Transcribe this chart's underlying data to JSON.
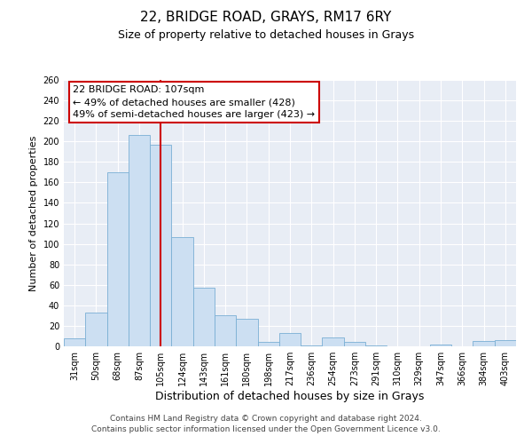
{
  "title": "22, BRIDGE ROAD, GRAYS, RM17 6RY",
  "subtitle": "Size of property relative to detached houses in Grays",
  "xlabel": "Distribution of detached houses by size in Grays",
  "ylabel": "Number of detached properties",
  "bar_labels": [
    "31sqm",
    "50sqm",
    "68sqm",
    "87sqm",
    "105sqm",
    "124sqm",
    "143sqm",
    "161sqm",
    "180sqm",
    "198sqm",
    "217sqm",
    "236sqm",
    "254sqm",
    "273sqm",
    "291sqm",
    "310sqm",
    "329sqm",
    "347sqm",
    "366sqm",
    "384sqm",
    "403sqm"
  ],
  "bar_values": [
    8,
    33,
    170,
    206,
    197,
    107,
    57,
    30,
    27,
    4,
    13,
    1,
    9,
    4,
    1,
    0,
    0,
    2,
    0,
    5,
    6
  ],
  "bar_color": "#ccdff2",
  "bar_edge_color": "#7aafd4",
  "background_color": "#e8edf5",
  "vline_x": 4,
  "vline_color": "#cc0000",
  "ylim": [
    0,
    260
  ],
  "yticks": [
    0,
    20,
    40,
    60,
    80,
    100,
    120,
    140,
    160,
    180,
    200,
    220,
    240,
    260
  ],
  "annotation_title": "22 BRIDGE ROAD: 107sqm",
  "annotation_line1": "← 49% of detached houses are smaller (428)",
  "annotation_line2": "49% of semi-detached houses are larger (423) →",
  "annotation_box_color": "#ffffff",
  "annotation_box_edge": "#cc0000",
  "footer_line1": "Contains HM Land Registry data © Crown copyright and database right 2024.",
  "footer_line2": "Contains public sector information licensed under the Open Government Licence v3.0.",
  "title_fontsize": 11,
  "subtitle_fontsize": 9,
  "xlabel_fontsize": 9,
  "ylabel_fontsize": 8,
  "tick_fontsize": 7,
  "annotation_fontsize": 8,
  "footer_fontsize": 6.5
}
